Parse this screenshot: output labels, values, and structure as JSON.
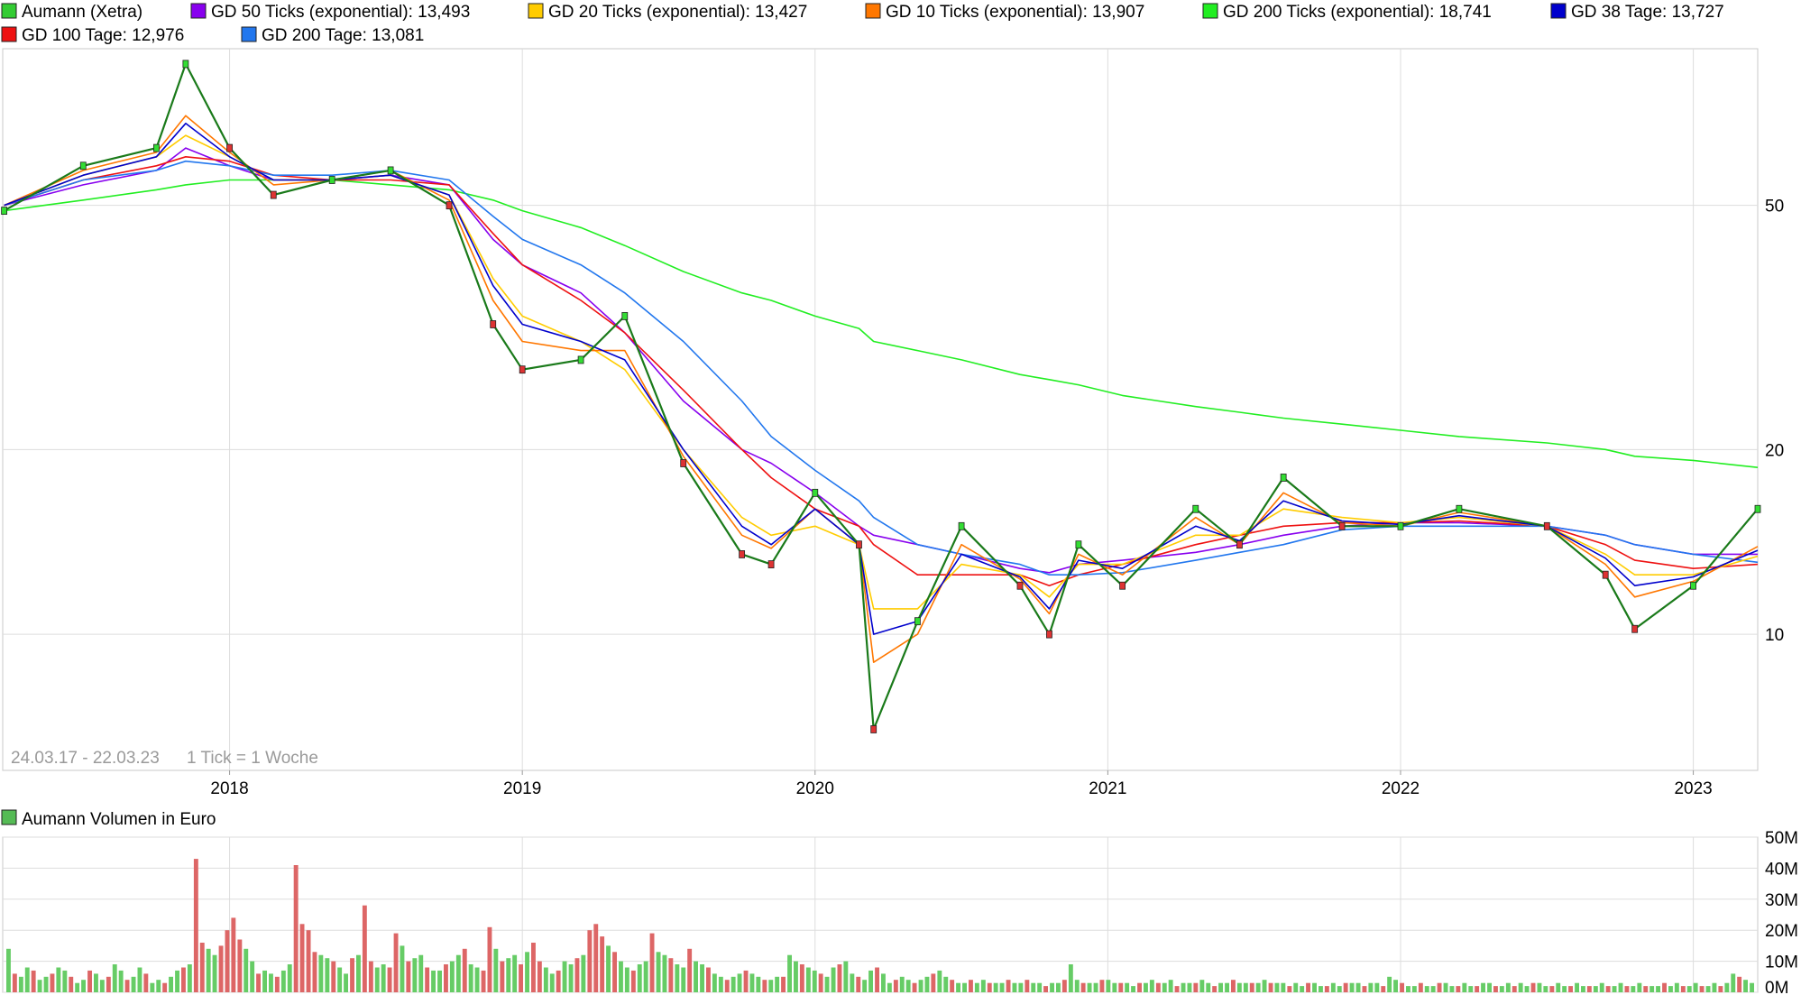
{
  "price_panel": {
    "legend": [
      {
        "label": "Aumann (Xetra)",
        "color": "#33cc33"
      },
      {
        "label": "GD 50 Ticks (exponential): 13,493",
        "color": "#8800ee"
      },
      {
        "label": "GD 20 Ticks (exponential): 13,427",
        "color": "#ffcc00"
      },
      {
        "label": "GD 10 Ticks (exponential): 13,907",
        "color": "#ff7700"
      },
      {
        "label": "GD 200 Ticks (exponential): 18,741",
        "color": "#22ee22"
      },
      {
        "label": "GD 38 Tage: 13,727",
        "color": "#0000cc"
      },
      {
        "label": "GD 100 Tage: 12,976",
        "color": "#ee1111"
      },
      {
        "label": "GD 200 Tage: 13,081",
        "color": "#2277ee"
      }
    ],
    "date_range": "24.03.17 - 22.03.23",
    "tick_note": "1 Tick = 1 Woche",
    "y_ticks": [
      "50",
      "20",
      "10"
    ],
    "x_ticks": [
      "2018",
      "2019",
      "2020",
      "2021",
      "2022",
      "2023"
    ]
  },
  "volume_panel": {
    "legend": {
      "label": "Aumann Volumen in Euro",
      "color": "#55bb55"
    },
    "y_ticks": [
      "50M",
      "40M",
      "30M",
      "20M",
      "10M",
      "0M"
    ]
  },
  "chart_data": [
    {
      "type": "line",
      "title": "",
      "scale": "log",
      "ylim": [
        6,
        90
      ],
      "y_ticks": [
        50,
        20,
        10
      ],
      "x_ticks": [
        2018,
        2019,
        2020,
        2021,
        2022,
        2023
      ],
      "xlim": [
        "2017-03-24",
        "2023-03-22"
      ],
      "grid": true,
      "x": [
        2017.23,
        2017.5,
        2017.75,
        2017.85,
        2018.0,
        2018.15,
        2018.35,
        2018.55,
        2018.75,
        2018.9,
        2019.0,
        2019.2,
        2019.35,
        2019.55,
        2019.75,
        2019.85,
        2020.0,
        2020.15,
        2020.2,
        2020.35,
        2020.5,
        2020.7,
        2020.8,
        2020.9,
        2021.05,
        2021.3,
        2021.45,
        2021.6,
        2021.8,
        2022.0,
        2022.2,
        2022.5,
        2022.7,
        2022.8,
        2023.0,
        2023.22
      ],
      "series": [
        {
          "name": "Aumann (Xetra)",
          "values": [
            49,
            58,
            62,
            85,
            62,
            52,
            55,
            57,
            50,
            32,
            27,
            28,
            33,
            19,
            13.5,
            13,
            17,
            14,
            7,
            10.5,
            15,
            12,
            10,
            14,
            12,
            16,
            14,
            18,
            15,
            15,
            16,
            15,
            12.5,
            10.2,
            12,
            16
          ]
        },
        {
          "name": "GD 50 Ticks (exponential): 13,493",
          "values": [
            50,
            54,
            57,
            62,
            58,
            55,
            55,
            56,
            54,
            44,
            40,
            36,
            31,
            24,
            20,
            19,
            17,
            15,
            14.5,
            14,
            13.5,
            12.8,
            12.6,
            13,
            13.2,
            13.6,
            14,
            14.5,
            15,
            15.2,
            15.2,
            15,
            14.5,
            14,
            13.5,
            13.5
          ]
        },
        {
          "name": "GD 20 Ticks (exponential): 13,427",
          "values": [
            50,
            56,
            60,
            65,
            60,
            55,
            55,
            56,
            52,
            38,
            33,
            30,
            27,
            20,
            15.5,
            14.5,
            15,
            14,
            11,
            11,
            13,
            12.5,
            11.5,
            13,
            13,
            14.5,
            14.5,
            16,
            15.5,
            15.2,
            15.5,
            15,
            13.5,
            12.5,
            12.5,
            13.4
          ]
        },
        {
          "name": "GD 10 Ticks (exponential): 13,907",
          "values": [
            50,
            57,
            61,
            70,
            61,
            54,
            55,
            57,
            51,
            35,
            30,
            29,
            29,
            19.5,
            14.5,
            13.8,
            16,
            14,
            9,
            10,
            14,
            12.3,
            10.8,
            13.5,
            12.5,
            15.5,
            14,
            17,
            15.2,
            15,
            15.8,
            15,
            13,
            11.5,
            12.2,
            13.9
          ]
        },
        {
          "name": "GD 200 Ticks (exponential): 18,741",
          "values": [
            49,
            51,
            53,
            54,
            55,
            55,
            55,
            54,
            53,
            51,
            49,
            46,
            43,
            39,
            36,
            35,
            33,
            31.5,
            30,
            29,
            28,
            26.5,
            26,
            25.5,
            24.5,
            23.5,
            23,
            22.5,
            22,
            21.5,
            21,
            20.5,
            20,
            19.5,
            19.2,
            18.7
          ]
        },
        {
          "name": "GD 38 Tage: 13,727",
          "values": [
            50,
            56,
            60,
            68,
            60,
            55,
            55,
            56,
            52,
            37,
            32,
            30,
            28,
            20,
            15,
            14,
            16,
            14,
            10,
            10.5,
            13.5,
            12.4,
            11,
            13.2,
            12.8,
            15,
            14.2,
            16.5,
            15.3,
            15.1,
            15.6,
            15,
            13.3,
            12,
            12.4,
            13.7
          ]
        },
        {
          "name": "GD 100 Tage: 12,976",
          "values": [
            50,
            55,
            58,
            60,
            59,
            56,
            55,
            55,
            54,
            45,
            40,
            35,
            31,
            25,
            20,
            18,
            16,
            15,
            14,
            12.5,
            12.5,
            12.5,
            12,
            12.5,
            13,
            14,
            14.5,
            15,
            15.2,
            15.2,
            15.3,
            15,
            14,
            13.2,
            12.8,
            13
          ]
        },
        {
          "name": "GD 200 Tage: 13,081",
          "values": [
            50,
            55,
            57,
            59,
            58,
            56,
            56,
            57,
            55,
            48,
            44,
            40,
            36,
            30,
            24,
            21,
            18.5,
            16.5,
            15.5,
            14,
            13.5,
            13,
            12.5,
            12.5,
            12.6,
            13.2,
            13.6,
            14,
            14.8,
            15,
            15,
            15,
            14.5,
            14,
            13.5,
            13.1
          ]
        }
      ]
    },
    {
      "type": "bar",
      "title": "",
      "ylim": [
        0,
        50
      ],
      "unit": "M",
      "y_ticks": [
        50,
        40,
        30,
        20,
        10,
        0
      ],
      "series": [
        {
          "name": "Aumann Volumen in Euro",
          "values": [
            14,
            6,
            5,
            8,
            7,
            4,
            5,
            6,
            8,
            7,
            5,
            3,
            4,
            7,
            6,
            4,
            5,
            9,
            7,
            4,
            5,
            8,
            6,
            3,
            4,
            3,
            5,
            7,
            8,
            9,
            43,
            16,
            14,
            12,
            15,
            20,
            24,
            17,
            14,
            10,
            6,
            7,
            6,
            5,
            7,
            9,
            41,
            22,
            20,
            13,
            12,
            11,
            10,
            8,
            6,
            11,
            12,
            28,
            10,
            8,
            9,
            8,
            19,
            15,
            10,
            11,
            12,
            8,
            7,
            7,
            9,
            10,
            12,
            14,
            9,
            8,
            7,
            21,
            14,
            10,
            11,
            12,
            9,
            13,
            16,
            10,
            8,
            6,
            7,
            10,
            9,
            11,
            12,
            20,
            22,
            18,
            15,
            13,
            10,
            8,
            7,
            9,
            10,
            19,
            13,
            12,
            11,
            9,
            8,
            14,
            10,
            9,
            8,
            6,
            5,
            4,
            5,
            6,
            7,
            6,
            5,
            4,
            4,
            5,
            5,
            12,
            10,
            9,
            8,
            7,
            6,
            5,
            8,
            9,
            10,
            6,
            5,
            4,
            7,
            8,
            6,
            3,
            4,
            5,
            4,
            3,
            4,
            5,
            6,
            7,
            5,
            4,
            3,
            3,
            4,
            3,
            4,
            3,
            3,
            3,
            4,
            3,
            3,
            4,
            3,
            3,
            2,
            3,
            3,
            4,
            9,
            4,
            3,
            3,
            3,
            4,
            4,
            3,
            3,
            3,
            2,
            3,
            3,
            4,
            3,
            3,
            4,
            2,
            3,
            3,
            3,
            4,
            3,
            2,
            3,
            3,
            4,
            3,
            3,
            3,
            3,
            4,
            3,
            3,
            3,
            2,
            3,
            2,
            3,
            3,
            2,
            2,
            3,
            2,
            3,
            3,
            3,
            2,
            3,
            3,
            2,
            5,
            4,
            3,
            2,
            2,
            3,
            2,
            2,
            3,
            3,
            2,
            2,
            3,
            2,
            2,
            3,
            3,
            2,
            2,
            3,
            2,
            3,
            2,
            3,
            3,
            2,
            2,
            3,
            2,
            2,
            3,
            2,
            2,
            2,
            3,
            2,
            2,
            3,
            2,
            2,
            3,
            2,
            2,
            2,
            3,
            2,
            3,
            2,
            2,
            3,
            2,
            2,
            3,
            2,
            3,
            6,
            5,
            4,
            3
          ]
        }
      ]
    }
  ]
}
